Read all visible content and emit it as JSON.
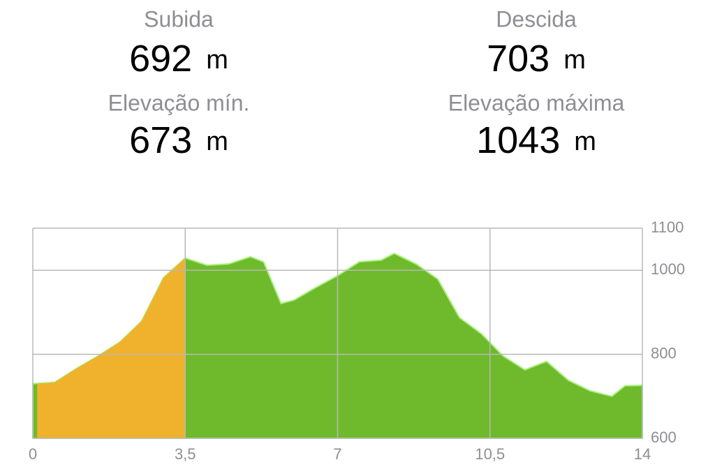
{
  "stats": [
    {
      "label": "Subida",
      "value": 692,
      "unit": "m"
    },
    {
      "label": "Descida",
      "value": 703,
      "unit": "m"
    },
    {
      "label": "Elevação mín.",
      "value": 673,
      "unit": "m"
    },
    {
      "label": "Elevação máxima",
      "value": 1043,
      "unit": "m"
    }
  ],
  "chart_data": {
    "type": "area",
    "series": [
      {
        "color": "#6fba2c",
        "x": [
          0,
          0.5,
          1,
          1.5,
          2,
          2.5,
          3,
          3.5,
          4,
          4.5,
          5,
          5.3,
          5.7,
          6,
          6.5,
          7,
          7.5,
          8,
          8.3,
          8.8,
          9.3,
          9.8,
          10.3,
          10.8,
          11.3,
          11.8,
          12.3,
          12.8,
          13.3,
          13.6,
          14
        ],
        "values": [
          730,
          733,
          766,
          796,
          829,
          879,
          982,
          1029,
          1012,
          1015,
          1032,
          1020,
          921,
          929,
          959,
          987,
          1020,
          1024,
          1040,
          1015,
          979,
          887,
          849,
          796,
          763,
          783,
          738,
          713,
          700,
          725,
          726
        ]
      },
      {
        "color": "#f0b22c",
        "x": [
          0.1,
          0.5,
          1,
          1.5,
          2,
          2.5,
          3,
          3.5
        ],
        "values": [
          730,
          733,
          766,
          796,
          829,
          879,
          982,
          1029
        ]
      }
    ],
    "xlim": [
      0,
      14
    ],
    "xticks": [
      0,
      {
        "value": 3.5,
        "label": "3,5"
      },
      7,
      {
        "value": 10.5,
        "label": "10,5"
      },
      14
    ],
    "ylim": [
      600,
      1100
    ],
    "yticks": [
      600,
      800,
      1000,
      1100
    ],
    "grid": true
  }
}
